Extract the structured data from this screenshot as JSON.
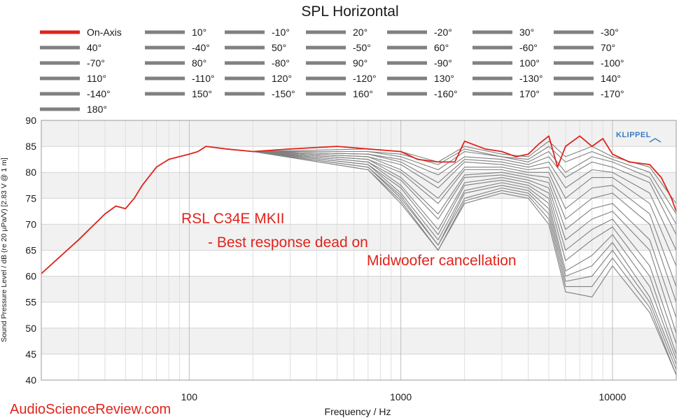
{
  "chart_data": {
    "type": "line",
    "title": "SPL Horizontal",
    "xlabel": "Frequency / Hz",
    "ylabel": "Sound Pressure Level / dB (re 20 µPa/V) [2.83  V @ 1 m]",
    "x_scale": "log",
    "xlim": [
      20,
      20000
    ],
    "ylim": [
      40,
      90
    ],
    "x_ticks": [
      100,
      1000,
      10000
    ],
    "x_tick_labels": [
      "100",
      "1000",
      "10000"
    ],
    "y_ticks": [
      40,
      45,
      50,
      55,
      60,
      65,
      70,
      75,
      80,
      85,
      90
    ],
    "y_tick_labels": [
      "40",
      "45",
      "50",
      "55",
      "60",
      "65",
      "70",
      "75",
      "80",
      "85",
      "90"
    ],
    "grid": true,
    "legend_position": "top",
    "colors": {
      "on_axis": "#e0241c",
      "off_axis": "#808080"
    },
    "legend": [
      "On-Axis",
      "10°",
      "-10°",
      "20°",
      "-20°",
      "30°",
      "-30°",
      "40°",
      "-40°",
      "50°",
      "-50°",
      "60°",
      "-60°",
      "70°",
      "-70°",
      "80°",
      "-80°",
      "90°",
      "-90°",
      "100°",
      "-100°",
      "110°",
      "-110°",
      "120°",
      "-120°",
      "130°",
      "-130°",
      "140°",
      "-140°",
      "150°",
      "-150°",
      "160°",
      "-160°",
      "170°",
      "-170°",
      "180°"
    ],
    "series": [
      {
        "name": "On-Axis",
        "x": [
          20,
          30,
          40,
          45,
          50,
          55,
          60,
          70,
          80,
          100,
          110,
          120,
          150,
          200,
          300,
          500,
          700,
          1000,
          1200,
          1500,
          1800,
          2000,
          2500,
          3000,
          3500,
          4000,
          4500,
          5000,
          5500,
          6000,
          7000,
          8000,
          9000,
          10000,
          12000,
          15000,
          17000,
          19000,
          20000
        ],
        "y": [
          60.5,
          67,
          72,
          73.5,
          73,
          75,
          77.5,
          81,
          82.5,
          83.5,
          84,
          85,
          84.5,
          84,
          84.5,
          85,
          84.5,
          84,
          82.5,
          82,
          82,
          86,
          84.5,
          84,
          83,
          83.5,
          85.5,
          87,
          81,
          85,
          87,
          85,
          86.5,
          83.5,
          82,
          81.5,
          79,
          75,
          72.5
        ]
      },
      {
        "name": "10°",
        "x": [
          200,
          700,
          1000,
          1500,
          2000,
          3000,
          4000,
          5000,
          6000,
          8000,
          10000,
          15000,
          20000
        ],
        "y": [
          84,
          84.5,
          84,
          82,
          85,
          83.5,
          83,
          86,
          83,
          85,
          83,
          81,
          74
        ]
      },
      {
        "name": "-10°",
        "x": [
          200,
          700,
          1000,
          1500,
          2000,
          3000,
          4000,
          5000,
          6000,
          8000,
          10000,
          15000,
          20000
        ],
        "y": [
          84,
          84,
          83.5,
          81.5,
          84.5,
          83,
          82.5,
          85,
          82,
          84,
          82.5,
          80,
          72
        ]
      },
      {
        "name": "20°",
        "x": [
          200,
          700,
          1000,
          1500,
          2000,
          3000,
          4000,
          5000,
          6000,
          8000,
          10000,
          15000,
          20000
        ],
        "y": [
          84,
          84,
          83,
          80.5,
          84,
          83,
          82,
          84,
          80,
          83,
          82,
          79,
          70
        ]
      },
      {
        "name": "-20°",
        "x": [
          200,
          700,
          1000,
          1500,
          2000,
          3000,
          4000,
          5000,
          6000,
          8000,
          10000,
          15000,
          20000
        ],
        "y": [
          84,
          83.5,
          82.5,
          79.5,
          83,
          82.5,
          81.5,
          83,
          79,
          82,
          81,
          78,
          68
        ]
      },
      {
        "name": "30°",
        "x": [
          200,
          700,
          1000,
          1500,
          2000,
          3000,
          4000,
          5000,
          6000,
          8000,
          10000,
          15000,
          20000
        ],
        "y": [
          84,
          83.5,
          82,
          78,
          82.5,
          82,
          81,
          82,
          77,
          80.5,
          80,
          76,
          65
        ]
      },
      {
        "name": "-30°",
        "x": [
          200,
          700,
          1000,
          1500,
          2000,
          3000,
          4000,
          5000,
          6000,
          8000,
          10000,
          15000,
          20000
        ],
        "y": [
          84,
          83,
          81.5,
          77,
          82,
          81.5,
          80.5,
          81,
          75,
          79,
          79,
          74,
          62
        ]
      },
      {
        "name": "40°",
        "x": [
          200,
          700,
          1000,
          1500,
          2000,
          3000,
          4000,
          5000,
          6000,
          8000,
          10000,
          15000,
          20000
        ],
        "y": [
          84,
          83,
          80.5,
          75,
          81,
          81,
          80,
          80,
          73,
          77,
          77.5,
          72,
          58
        ]
      },
      {
        "name": "-40°",
        "x": [
          200,
          700,
          1000,
          1500,
          2000,
          3000,
          4000,
          5000,
          6000,
          8000,
          10000,
          15000,
          20000
        ],
        "y": [
          84,
          82.5,
          80,
          74,
          80.5,
          80.5,
          79.5,
          79,
          71,
          75,
          76,
          70,
          55
        ]
      },
      {
        "name": "50°",
        "x": [
          200,
          700,
          1000,
          1500,
          2000,
          3000,
          4000,
          5000,
          6000,
          8000,
          10000,
          15000,
          20000
        ],
        "y": [
          84,
          82.5,
          79,
          72,
          79.5,
          80,
          79,
          78,
          69,
          73,
          74,
          67,
          52
        ]
      },
      {
        "name": "-50°",
        "x": [
          200,
          700,
          1000,
          1500,
          2000,
          3000,
          4000,
          5000,
          6000,
          8000,
          10000,
          15000,
          20000
        ],
        "y": [
          84,
          82,
          78.5,
          71,
          79,
          79.5,
          78.5,
          77,
          67,
          71,
          72.5,
          65,
          49
        ]
      },
      {
        "name": "60°",
        "x": [
          200,
          700,
          1000,
          1500,
          2000,
          3000,
          4000,
          5000,
          6000,
          8000,
          10000,
          15000,
          20000
        ],
        "y": [
          84,
          82,
          77.5,
          69,
          78,
          79,
          78,
          76,
          65,
          69,
          71,
          62,
          47
        ]
      },
      {
        "name": "-60°",
        "x": [
          200,
          700,
          1000,
          1500,
          2000,
          3000,
          4000,
          5000,
          6000,
          8000,
          10000,
          15000,
          20000
        ],
        "y": [
          84,
          81.5,
          77,
          68,
          77.5,
          78.5,
          77.5,
          75,
          63,
          67,
          69.5,
          60,
          45
        ]
      },
      {
        "name": "70°",
        "x": [
          200,
          700,
          1000,
          1500,
          2000,
          3000,
          4000,
          5000,
          6000,
          8000,
          10000,
          15000,
          20000
        ],
        "y": [
          84,
          81.5,
          76,
          67,
          76.5,
          78,
          77,
          74,
          61,
          64,
          68,
          58,
          44
        ]
      },
      {
        "name": "-70°",
        "x": [
          200,
          700,
          1000,
          1500,
          2000,
          3000,
          4000,
          5000,
          6000,
          8000,
          10000,
          15000,
          20000
        ],
        "y": [
          84,
          81,
          75.5,
          66,
          76,
          77.5,
          76.5,
          73,
          60,
          62,
          66.5,
          56,
          43
        ]
      },
      {
        "name": "80°",
        "x": [
          200,
          700,
          1000,
          1500,
          2000,
          3000,
          4000,
          5000,
          6000,
          8000,
          10000,
          15000,
          20000
        ],
        "y": [
          84,
          81,
          75,
          66,
          75,
          77,
          76,
          72,
          59,
          60,
          65,
          55,
          42
        ]
      },
      {
        "name": "-80°",
        "x": [
          200,
          700,
          1000,
          1500,
          2000,
          3000,
          4000,
          5000,
          6000,
          8000,
          10000,
          15000,
          20000
        ],
        "y": [
          84,
          80.5,
          74.5,
          65,
          74.5,
          76.5,
          75.5,
          71,
          58,
          58,
          63.5,
          54,
          41
        ]
      },
      {
        "name": "90°",
        "x": [
          200,
          700,
          1000,
          1500,
          2000,
          3000,
          4000,
          5000,
          6000,
          8000,
          10000,
          15000,
          20000
        ],
        "y": [
          84,
          80.5,
          74,
          65,
          74,
          76,
          75,
          70,
          57,
          56,
          62,
          53,
          41
        ]
      }
    ],
    "annotations": [
      "RSL C34E MKII",
      "- Best response dead on",
      "Midwoofer cancellation"
    ]
  },
  "logo": {
    "text": "KLIPPEL"
  },
  "watermark": {
    "text": "AudioScienceReview.com"
  }
}
